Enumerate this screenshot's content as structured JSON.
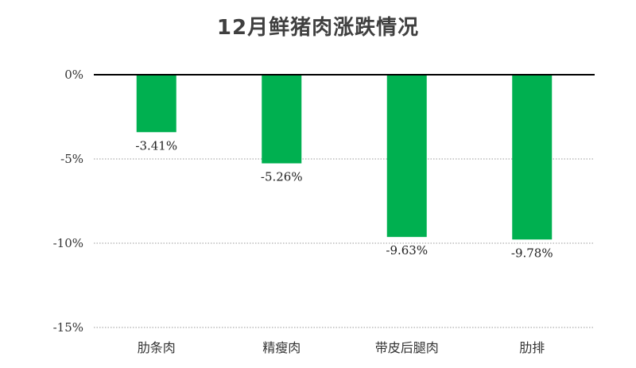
{
  "chart_data": {
    "type": "bar",
    "title": "12月鲜猪肉涨跌情况",
    "categories": [
      "肋条肉",
      "精瘦肉",
      "带皮后腿肉",
      "肋排"
    ],
    "values": [
      -3.41,
      -5.26,
      -9.63,
      -9.78
    ],
    "data_labels": [
      "-3.41%",
      "-5.26%",
      "-9.63%",
      "-9.78%"
    ],
    "y_ticks": [
      0,
      -5,
      -10,
      -15
    ],
    "y_tick_labels": [
      "0%",
      "-5%",
      "-10%",
      "-15%"
    ],
    "ylim": [
      -15,
      0
    ],
    "grid": true,
    "bar_color": "#00b050",
    "xlabel": "",
    "ylabel": ""
  }
}
